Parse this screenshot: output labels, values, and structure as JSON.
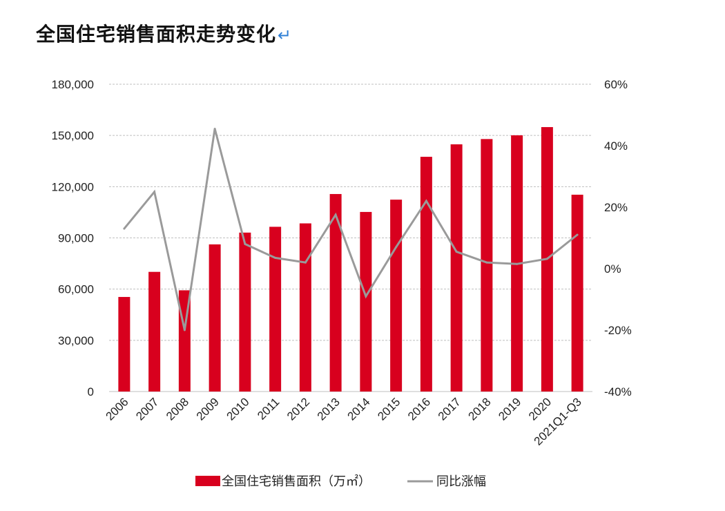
{
  "title": "全国住宅销售面积走势变化",
  "title_mark": "↵",
  "colors": {
    "bar": "#d8001e",
    "line": "#9a9a9a",
    "grid": "#bfbfbf",
    "text": "#222222"
  },
  "chart_data": {
    "type": "bar",
    "categories": [
      "2006",
      "2007",
      "2008",
      "2009",
      "2010",
      "2011",
      "2012",
      "2013",
      "2014",
      "2015",
      "2016",
      "2017",
      "2018",
      "2019",
      "2020",
      "2021Q1-Q3"
    ],
    "series": [
      {
        "name": "全国住宅销售面积（万㎡）",
        "type": "bar",
        "axis": "left",
        "values": [
          55400,
          70100,
          59300,
          86200,
          93100,
          96500,
          98500,
          115700,
          105200,
          112400,
          137500,
          144800,
          147900,
          150100,
          154900,
          115300
        ]
      },
      {
        "name": "同比涨幅",
        "type": "line",
        "axis": "right",
        "unit": "%",
        "values": [
          13,
          25,
          -20,
          45.5,
          8,
          3.5,
          2,
          17.5,
          -9,
          7,
          22,
          5.5,
          2,
          1.5,
          3.2,
          11
        ]
      }
    ],
    "left_axis": {
      "ylim": [
        0,
        180000
      ],
      "ticks": [
        "0",
        "30,000",
        "60,000",
        "90,000",
        "120,000",
        "150,000",
        "180,000"
      ]
    },
    "right_axis": {
      "ylim": [
        -40,
        60
      ],
      "ticks": [
        "-40%",
        "-20%",
        "0%",
        "20%",
        "40%",
        "60%"
      ]
    },
    "grid": "horizontal-dashed",
    "legend": {
      "placement": "bottom-center"
    }
  }
}
